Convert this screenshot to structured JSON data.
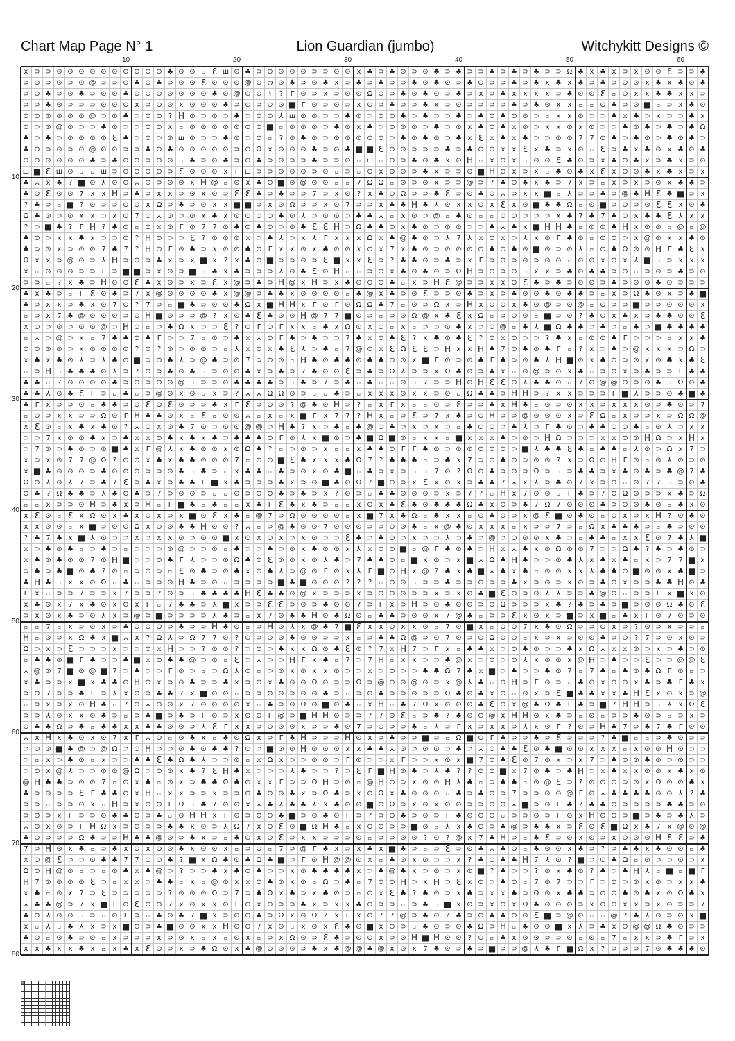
{
  "header": {
    "page_title": "Chart Map Page N° 1",
    "pattern_name": "Lion Guardian (jumbo)",
    "designer": "Witchykitt Designs ©"
  },
  "column_labels": [
    "10",
    "20",
    "30",
    "40",
    "50",
    "60"
  ],
  "row_labels": [
    "10",
    "20",
    "30",
    "40",
    "50",
    "60",
    "70",
    "80"
  ],
  "symbol_key": {
    "x": "x",
    "c": "⊃",
    "o": "⊙",
    "k": "♣",
    "s": "▫",
    "e": "Ɛ",
    "w": "ш",
    "i": "ш",
    "a": "@",
    "m": "ო",
    "n": "♮",
    "q": "?",
    "g": "Γ",
    "b": "■",
    "h": "H",
    "l": "Ω",
    "y": "⅄",
    "7": "7"
  },
  "grid_rows": [
    "xccooooooooookoosewokcooooccooxkckocokckcckckckcclkxkxcxooecckck",
    "cococoaccokokcooeoooaomokcokxckckcckokockocckckxkxkckcooxkxkok",
    "cokcokcookoooooookoaoonqgocxcoolockokockcxckxxxxckooesoxxkkx",
    "cckocccoooxcooxoookcocoobgococxockcckxcocccckckoxxssokcobscxkoxx",
    "ooooooacokcooqhocockcooyioocckocookckcckckokoocsxxocckxkcxcckx",
    "ocoaocckoccooxsooooooobsooockoxkcooockcoxkokxocxxoxocckokckckl",
    "kckcooooekcocoiocckocosqokocooooockokockxexkxkccoo77okckockokck",
    "kococoaoocckokooooocolxoookcokbbeooccckckooxxexkcxoseckxkoxkokokc",
    "ooooookckoocooskcokcokcocckccosisockokxohsxoxsooekocxkokxckxcox",
    "wbewosswcooooceoooxgwccooocoscsoxoockxccobhoxcxskokxexookxkxcxlc"
  ],
  "last_row_start": "xxkxxkxsxkx"
}
